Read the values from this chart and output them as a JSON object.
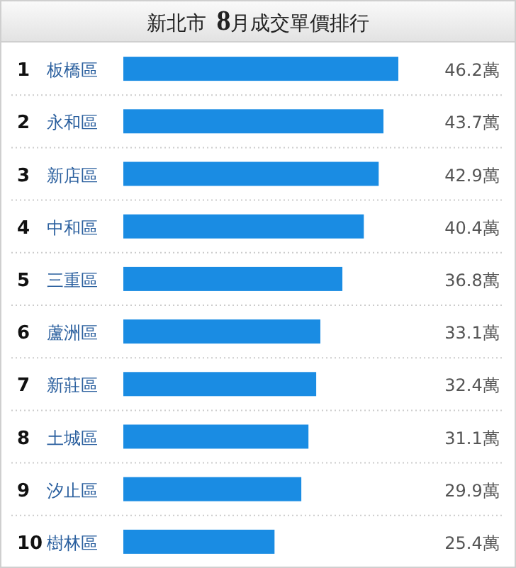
{
  "chart_data": {
    "type": "bar",
    "orientation": "horizontal",
    "title": "新北市 8月成交單價排行",
    "categories": [
      "1 板橋區",
      "2 永和區",
      "3 新店區",
      "4 中和區",
      "5 三重區",
      "6 蘆洲區",
      "7 新莊區",
      "8 土城區",
      "9 汐止區",
      "10 樹林區"
    ],
    "values": [
      46.2,
      43.7,
      42.9,
      40.4,
      36.8,
      33.1,
      32.4,
      31.1,
      29.9,
      25.4
    ],
    "value_labels": [
      "46.2萬",
      "43.7萬",
      "42.9萬",
      "40.4萬",
      "36.8萬",
      "33.1萬",
      "32.4萬",
      "31.1萬",
      "29.9萬",
      "25.4萬"
    ],
    "color": "#1a8ce3"
  }
}
